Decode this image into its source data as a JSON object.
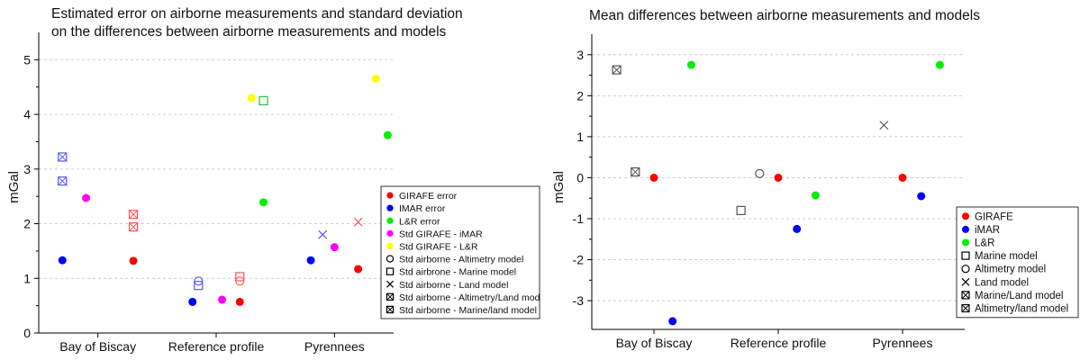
{
  "chart_data": [
    {
      "type": "scatter",
      "title": [
        "Estimated error on airborne measurements and standard deviation",
        "on the differences between airborne measurements and models"
      ],
      "xlabel": "",
      "ylabel": "mGal",
      "categories": [
        "Bay of Biscay",
        "Reference profile",
        "Pyrennees"
      ],
      "ylim": [
        0,
        5.5
      ],
      "yticks": [
        0,
        1,
        2,
        3,
        4,
        5
      ],
      "grid": "horizontal-dashed",
      "legend_position": "right",
      "series": [
        {
          "name": "GIRAFE error",
          "marker": "circle",
          "color": "#ff0000",
          "points": [
            {
              "category": 0,
              "offset": 0.3,
              "value": 1.32
            },
            {
              "category": 1,
              "offset": 0.2,
              "value": 0.57
            },
            {
              "category": 2,
              "offset": 0.2,
              "value": 1.17
            }
          ]
        },
        {
          "name": " IMAR error",
          "marker": "circle",
          "color": "#0000ff",
          "points": [
            {
              "category": 0,
              "offset": -0.3,
              "value": 1.33
            },
            {
              "category": 1,
              "offset": -0.2,
              "value": 0.57
            },
            {
              "category": 2,
              "offset": -0.2,
              "value": 1.33
            }
          ]
        },
        {
          "name": "L&R error",
          "marker": "circle",
          "color": "#00ee00",
          "points": [
            {
              "category": 1,
              "offset": 0.4,
              "value": 2.39
            },
            {
              "category": 2,
              "offset": 0.45,
              "value": 3.62
            }
          ]
        },
        {
          "name": "Std GIRAFE - iMAR",
          "marker": "circle",
          "color": "#ff00ff",
          "points": [
            {
              "category": 0,
              "offset": -0.1,
              "value": 2.47
            },
            {
              "category": 1,
              "offset": 0.05,
              "value": 0.61
            },
            {
              "category": 2,
              "offset": 0.0,
              "value": 1.57
            }
          ]
        },
        {
          "name": "Std GIRAFE - L&R",
          "marker": "circle",
          "color": "#ffff00",
          "points": [
            {
              "category": 1,
              "offset": 0.3,
              "value": 4.3
            },
            {
              "category": 2,
              "offset": 0.35,
              "value": 4.65
            }
          ]
        },
        {
          "name": "Std airborne -  Altimetry model",
          "marker": "open-circle",
          "color": "#5555ff",
          "points": [
            {
              "category": 1,
              "offset": -0.15,
              "value": 0.95
            }
          ]
        },
        {
          "name": "Std airbrone - Marine model",
          "marker": "open-square",
          "color": "#5555ff",
          "points": [
            {
              "category": 1,
              "offset": -0.15,
              "value": 0.87
            }
          ]
        },
        {
          "name": "Std airborne - Land model",
          "marker": "cross",
          "color": "#5555ff",
          "points": [
            {
              "category": 2,
              "offset": -0.1,
              "value": 1.8
            }
          ]
        },
        {
          "name": "Std airborne - Altimetry/Land model",
          "marker": "square-x",
          "color": "#5555ff",
          "points": [
            {
              "category": 0,
              "offset": -0.3,
              "value": 2.78
            }
          ]
        },
        {
          "name": "Std airborne - Marine/land model",
          "marker": "square-x",
          "color": "#5555ff",
          "points": [
            {
              "category": 0,
              "offset": -0.3,
              "value": 3.22
            }
          ]
        },
        {
          "name": "Std airborne -  Altimetry model (Reference, red)",
          "legend": false,
          "marker": "open-circle",
          "color": "#ff5555",
          "points": [
            {
              "category": 1,
              "offset": 0.2,
              "value": 0.95
            }
          ]
        },
        {
          "name": "Std airbrone - Marine model (Reference, red)",
          "legend": false,
          "marker": "open-square",
          "color": "#ff5555",
          "points": [
            {
              "category": 1,
              "offset": 0.2,
              "value": 1.03
            }
          ]
        },
        {
          "name": "Std airborne - Land model (Pyrennees, red)",
          "legend": false,
          "marker": "cross",
          "color": "#ff5555",
          "points": [
            {
              "category": 2,
              "offset": 0.2,
              "value": 2.03
            }
          ]
        },
        {
          "name": "Std airborne - Altimetry/Land model (red)",
          "legend": false,
          "marker": "square-x",
          "color": "#ff5555",
          "points": [
            {
              "category": 0,
              "offset": 0.3,
              "value": 1.94
            }
          ]
        },
        {
          "name": "Std airborne - Marine/land model (red)",
          "legend": false,
          "marker": "square-x",
          "color": "#ff5555",
          "points": [
            {
              "category": 0,
              "offset": 0.3,
              "value": 2.17
            }
          ]
        },
        {
          "name": "Std airbrone - Marine model (L&R, green)",
          "legend": false,
          "marker": "open-square",
          "color": "#33bb33",
          "points": [
            {
              "category": 1,
              "offset": 0.4,
              "value": 4.25
            }
          ]
        }
      ]
    },
    {
      "type": "scatter",
      "title": [
        "Mean differences between airborne measurements and models"
      ],
      "xlabel": "",
      "ylabel": "mGal",
      "categories": [
        "Bay of Biscay",
        "Reference profile",
        "Pyrennees"
      ],
      "ylim": [
        -3.7,
        3.5
      ],
      "yticks": [
        -3,
        -2,
        -1,
        0,
        1,
        2,
        3
      ],
      "grid": "horizontal-dashed",
      "legend_position": "bottom-right",
      "series": [
        {
          "name": "GIRAFE",
          "marker": "circle",
          "color": "#ff0000",
          "points": [
            {
              "category": 0,
              "offset": 0.0,
              "value": 0.0
            },
            {
              "category": 1,
              "offset": 0.0,
              "value": 0.0
            },
            {
              "category": 2,
              "offset": 0.0,
              "value": 0.0
            }
          ]
        },
        {
          "name": "iMAR",
          "marker": "circle",
          "color": "#0000ff",
          "points": [
            {
              "category": 0,
              "offset": 0.15,
              "value": -3.5
            },
            {
              "category": 1,
              "offset": 0.15,
              "value": -1.25
            },
            {
              "category": 2,
              "offset": 0.15,
              "value": -0.45
            }
          ]
        },
        {
          "name": "L&R",
          "marker": "circle",
          "color": "#00ee00",
          "points": [
            {
              "category": 0,
              "offset": 0.3,
              "value": 2.75
            },
            {
              "category": 1,
              "offset": 0.3,
              "value": -0.43
            },
            {
              "category": 2,
              "offset": 0.3,
              "value": 2.75
            }
          ]
        },
        {
          "name": "Marine model",
          "marker": "open-square",
          "color": "#555555",
          "points": [
            {
              "category": 1,
              "offset": -0.3,
              "value": -0.8
            }
          ]
        },
        {
          "name": "Altimetry model",
          "marker": "open-circle",
          "color": "#555555",
          "points": [
            {
              "category": 1,
              "offset": -0.15,
              "value": 0.1
            }
          ]
        },
        {
          "name": "Land model",
          "marker": "cross",
          "color": "#555555",
          "points": [
            {
              "category": 2,
              "offset": -0.15,
              "value": 1.28
            }
          ]
        },
        {
          "name": "Marine/Land model",
          "marker": "square-x",
          "color": "#555555",
          "points": [
            {
              "category": 0,
              "offset": -0.3,
              "value": 2.63
            }
          ]
        },
        {
          "name": " Altimetry/land model",
          "marker": "square-x",
          "color": "#555555",
          "points": [
            {
              "category": 0,
              "offset": -0.15,
              "value": 0.14
            }
          ]
        }
      ]
    }
  ]
}
